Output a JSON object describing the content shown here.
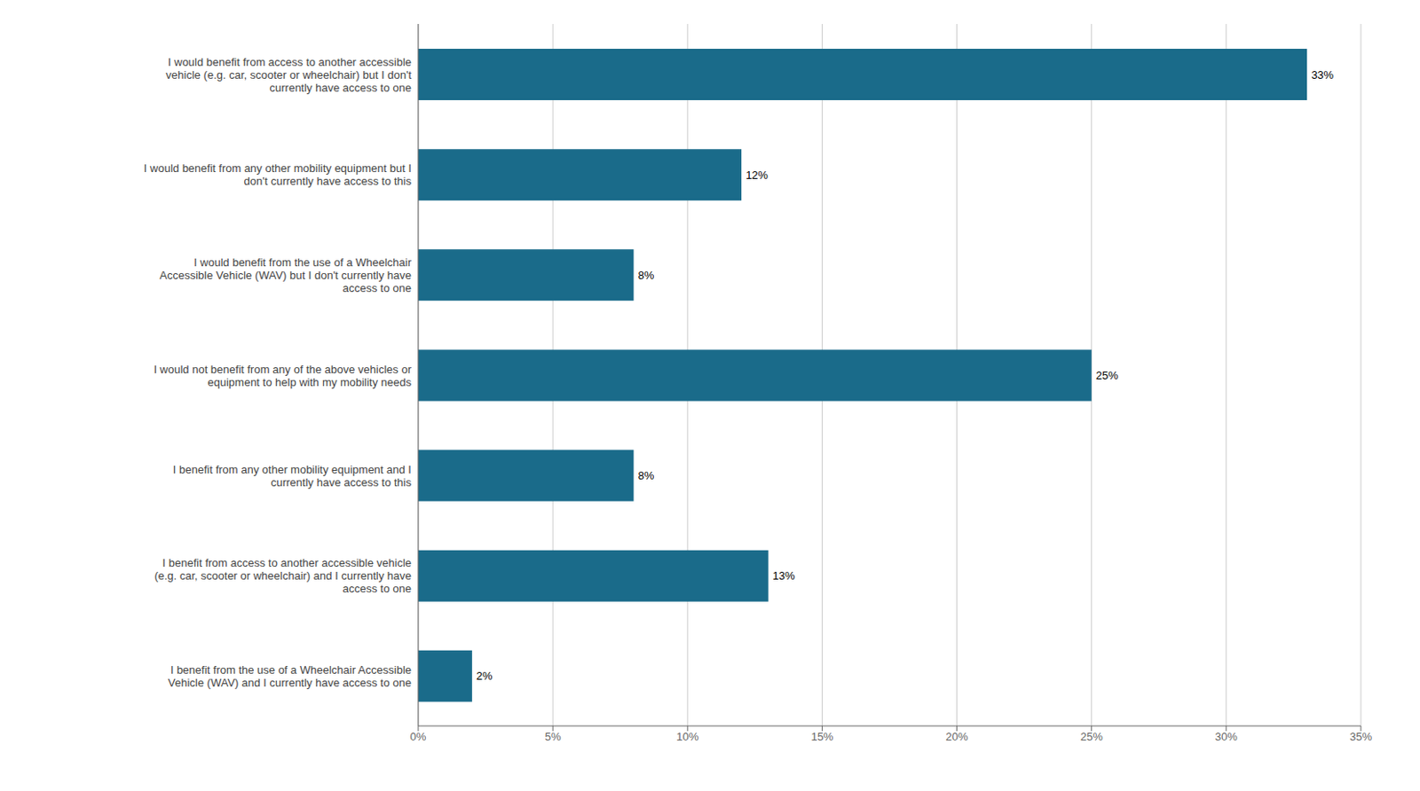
{
  "chart_data": {
    "type": "bar",
    "orientation": "horizontal",
    "categories": [
      "I would benefit from access to another accessible\nvehicle (e.g. car, scooter or wheelchair) but I don't\ncurrently have access to one",
      "I would benefit from any other mobility equipment but I\ndon't currently have access to this",
      "I would benefit from the use of a Wheelchair\nAccessible Vehicle (WAV) but I don't currently have\naccess to one",
      "I would not benefit from any of the above vehicles or\nequipment to help with my mobility needs",
      "I benefit from any other mobility equipment and I\ncurrently have access to this",
      "I benefit from access to another accessible vehicle\n(e.g. car, scooter or wheelchair) and I currently have\naccess to one",
      "I benefit from the use of a Wheelchair Accessible\nVehicle (WAV) and I currently have access to one"
    ],
    "values": [
      33,
      12,
      8,
      25,
      8,
      13,
      2
    ],
    "value_labels": [
      "33%",
      "12%",
      "8%",
      "25%",
      "8%",
      "13%",
      "2%"
    ],
    "data_labels": true,
    "color": "#1a6b8a",
    "xlim": [
      0,
      35
    ],
    "xticks": [
      {
        "value": 0,
        "label": "0%"
      },
      {
        "value": 5,
        "label": "5%"
      },
      {
        "value": 10,
        "label": "10%"
      },
      {
        "value": 15,
        "label": "15%"
      },
      {
        "value": 20,
        "label": "20%"
      },
      {
        "value": 25,
        "label": "25%"
      },
      {
        "value": 30,
        "label": "30%"
      },
      {
        "value": 35,
        "label": "35%"
      }
    ],
    "grid": true
  }
}
